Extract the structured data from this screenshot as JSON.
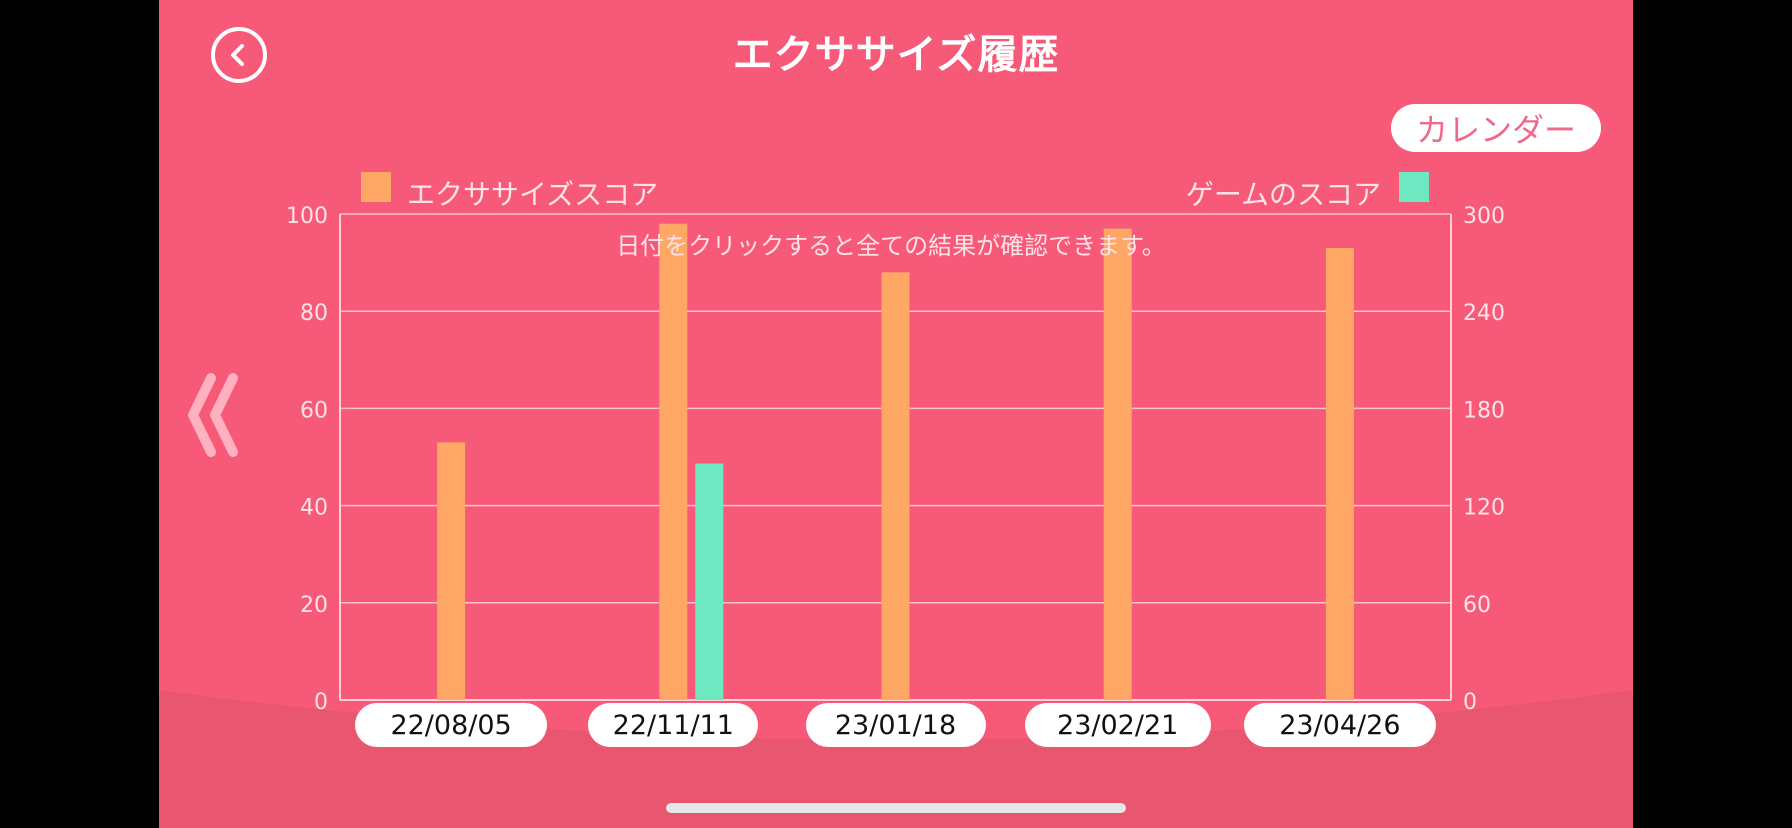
{
  "header": {
    "title": "エクササイズ履歴",
    "back_icon": "chevron-left-circle-icon",
    "calendar_label": "カレンダー"
  },
  "nav": {
    "prev_icon": "double-chevron-left-icon"
  },
  "colors": {
    "background": "#f75a78",
    "background_lower": "#e8566f",
    "exercise_bar": "#ffa865",
    "game_bar": "#6ee8c0",
    "axis": "#ffd0d9",
    "grid": "#ffc2cf",
    "text_light": "#fde3e8"
  },
  "chart_data": {
    "type": "bar",
    "title": "",
    "hint": "日付をクリックすると全ての結果が確認できます。",
    "categories": [
      "22/08/05",
      "22/11/11",
      "23/01/18",
      "23/02/21",
      "23/04/26"
    ],
    "series": [
      {
        "name": "エクササイズスコア",
        "axis": "left",
        "values": [
          53,
          98,
          88,
          97,
          93
        ]
      },
      {
        "name": "ゲームのスコア",
        "axis": "right",
        "values": [
          0,
          146,
          0,
          0,
          0
        ]
      }
    ],
    "left_axis": {
      "ylim": [
        0,
        100
      ],
      "ticks": [
        "0",
        "20",
        "40",
        "60",
        "80",
        "100"
      ]
    },
    "right_axis": {
      "ylim": [
        0,
        300
      ],
      "ticks": [
        "0",
        "60",
        "120",
        "180",
        "240",
        "300"
      ]
    },
    "grid": true,
    "legend": {
      "left": "エクササイズスコア",
      "right": "ゲームのスコア"
    }
  }
}
